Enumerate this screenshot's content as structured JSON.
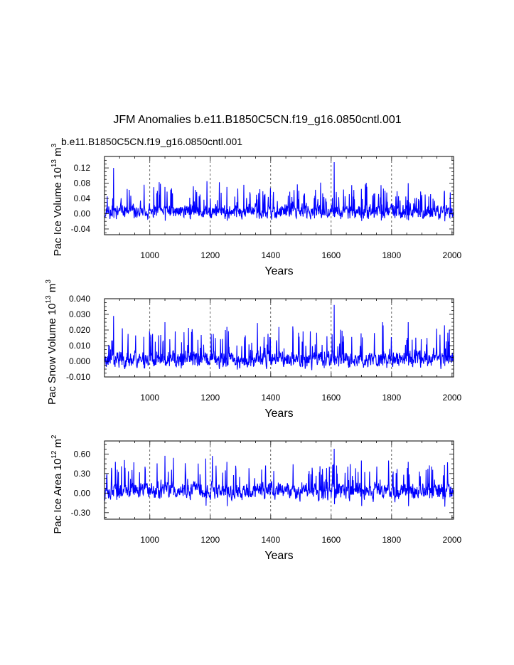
{
  "figure": {
    "title": "JFM Anomalies b.e11.B1850C5CN.f19_g16.0850cntl.001",
    "subtitle": "b.e11.B1850C5CN.f19_g16.0850cntl.001",
    "line_color": "#0000ff"
  },
  "chart_data": [
    {
      "type": "line",
      "ylabel_parts": {
        "base": "Pac Ice Volume 10",
        "exp": "13",
        "unit": " m",
        "unit_exp": "3"
      },
      "xlabel": "Years",
      "xlim": [
        850,
        2005
      ],
      "ylim": [
        -0.055,
        0.15
      ],
      "xticks": [
        1000,
        1200,
        1400,
        1600,
        1800,
        2000
      ],
      "yticks": [
        -0.04,
        0.0,
        0.04,
        0.08,
        0.12
      ],
      "ytick_labels": [
        "-0.04",
        "0.00",
        "0.04",
        "0.08",
        "0.12"
      ],
      "gridlines_x": [
        1000,
        1200,
        1400,
        1600,
        1800
      ],
      "series": {
        "name": "Pac Ice Volume anomaly",
        "baseline": 0.0,
        "low": -0.034,
        "noise_amp": 0.032,
        "seed": 11,
        "peaks": [
          [
            880,
            0.12
          ],
          [
            1050,
            0.07
          ],
          [
            1255,
            0.07
          ],
          [
            1610,
            0.135
          ],
          [
            1700,
            0.065
          ],
          [
            1765,
            0.075
          ],
          [
            1855,
            0.08
          ],
          [
            1975,
            0.06
          ]
        ]
      }
    },
    {
      "type": "line",
      "ylabel_parts": {
        "base": "Pac Snow Volume 10",
        "exp": "13",
        "unit": " m",
        "unit_exp": "3"
      },
      "xlabel": "Years",
      "xlim": [
        850,
        2005
      ],
      "ylim": [
        -0.01,
        0.04
      ],
      "xticks": [
        1000,
        1200,
        1400,
        1600,
        1800,
        2000
      ],
      "yticks": [
        -0.01,
        0.0,
        0.01,
        0.02,
        0.03,
        0.04
      ],
      "ytick_labels": [
        "-0.010",
        "0.000",
        "0.010",
        "0.020",
        "0.030",
        "0.040"
      ],
      "gridlines_x": [
        1000,
        1200,
        1400,
        1600,
        1800
      ],
      "series": {
        "name": "Pac Snow Volume anomaly",
        "baseline": 0.0,
        "low": -0.0075,
        "noise_amp": 0.009,
        "seed": 23,
        "peaks": [
          [
            880,
            0.029
          ],
          [
            1050,
            0.025
          ],
          [
            1255,
            0.022
          ],
          [
            1610,
            0.036
          ],
          [
            1770,
            0.025
          ],
          [
            1855,
            0.025
          ],
          [
            1975,
            0.023
          ]
        ]
      }
    },
    {
      "type": "line",
      "ylabel_parts": {
        "base": "Pac Ice Area 10",
        "exp": "12",
        "unit": " m",
        "unit_exp": "2"
      },
      "xlabel": "Years",
      "xlim": [
        850,
        2005
      ],
      "ylim": [
        -0.4,
        0.8
      ],
      "xticks": [
        1000,
        1200,
        1400,
        1600,
        1800,
        2000
      ],
      "yticks": [
        -0.3,
        0.0,
        0.3,
        0.6
      ],
      "ytick_labels": [
        "-0.30",
        "0.00",
        "0.30",
        "0.60"
      ],
      "gridlines_x": [
        1000,
        1200,
        1400,
        1600,
        1800
      ],
      "series": {
        "name": "Pac Ice Area anomaly",
        "baseline": 0.0,
        "low": -0.32,
        "noise_amp": 0.22,
        "seed": 37,
        "peaks": [
          [
            1185,
            0.53
          ],
          [
            1255,
            0.48
          ],
          [
            1610,
            0.68
          ],
          [
            1700,
            0.5
          ],
          [
            1855,
            0.48
          ],
          [
            1975,
            0.43
          ]
        ]
      }
    }
  ]
}
